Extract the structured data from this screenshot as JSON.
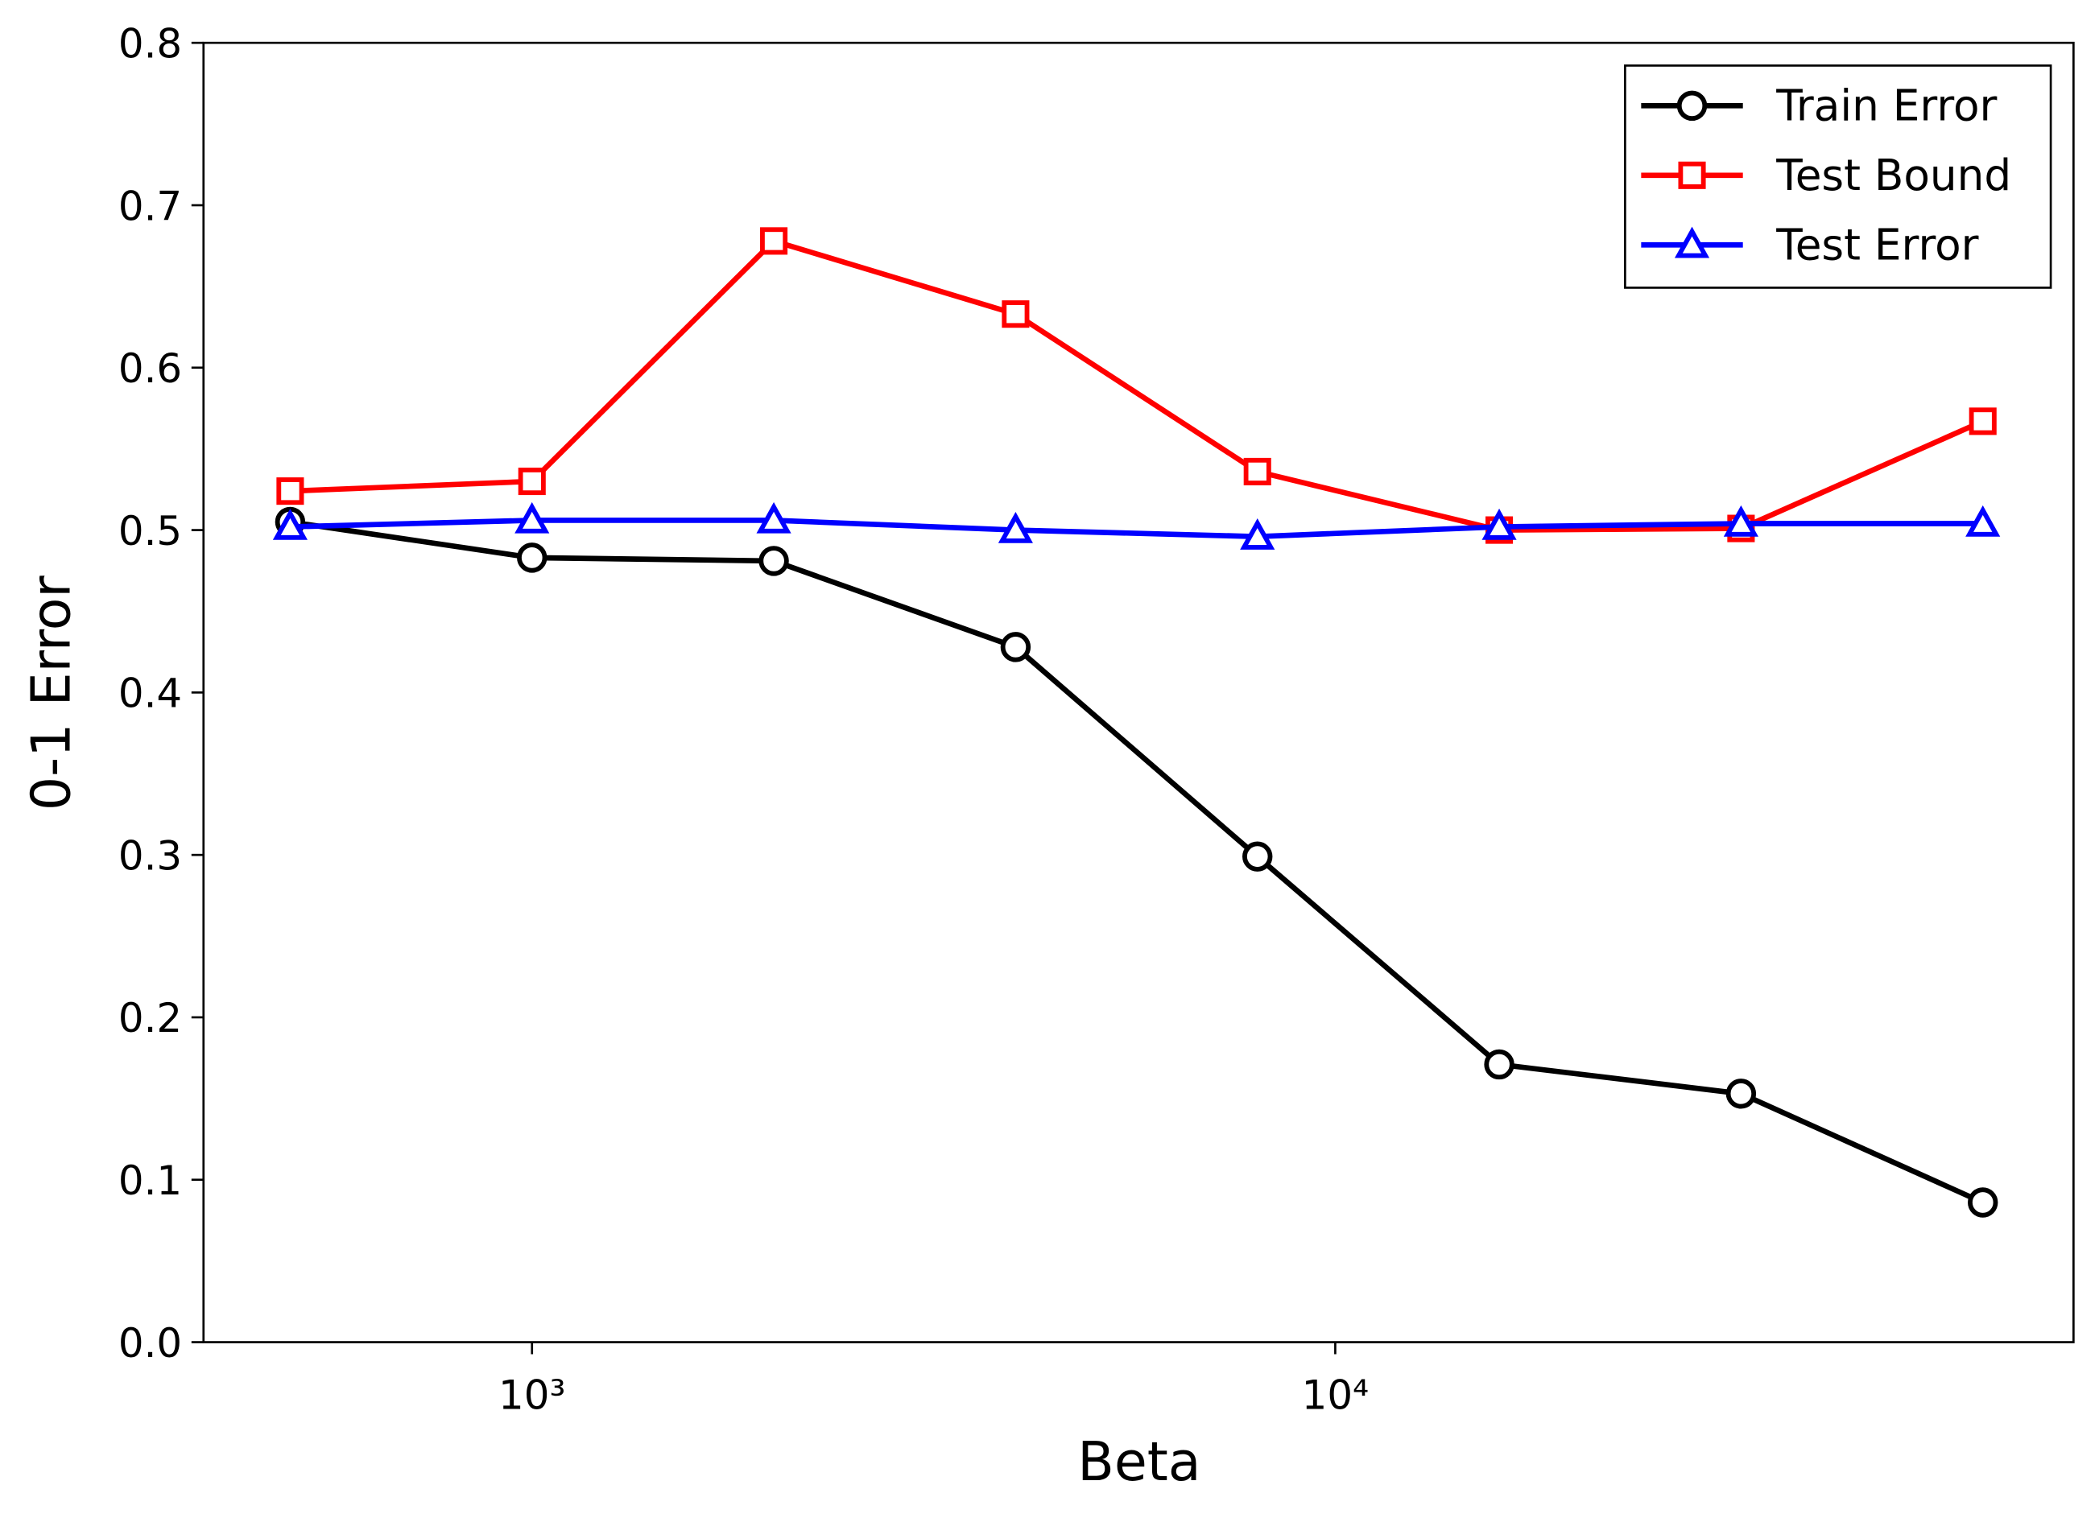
{
  "chart_data": {
    "type": "line",
    "xlabel": "Beta",
    "ylabel": "0-1 Error",
    "x": [
      500,
      1000,
      2000,
      4000,
      8000,
      16000,
      32000,
      64000
    ],
    "xscale": "log",
    "xlim": [
      390,
      83000
    ],
    "xticks": [
      {
        "value": 1000,
        "label": "10³"
      },
      {
        "value": 10000,
        "label": "10⁴"
      }
    ],
    "ylim": [
      0,
      0.8
    ],
    "yticks": [
      {
        "value": 0,
        "label": "0.0"
      },
      0.1,
      0.2,
      0.3,
      0.4,
      0.5,
      0.6,
      0.7,
      0.8
    ],
    "legend": "upper right",
    "series": [
      {
        "name": "Train Error",
        "color": "#000000",
        "marker": "circle",
        "values": [
          0.505,
          0.483,
          0.481,
          0.428,
          0.299,
          0.171,
          0.153,
          0.086
        ]
      },
      {
        "name": "Test Bound",
        "color": "#ff0000",
        "marker": "square",
        "values": [
          0.524,
          0.53,
          0.678,
          0.633,
          0.536,
          0.5,
          0.501,
          0.567
        ]
      },
      {
        "name": "Test Error",
        "color": "#0000ff",
        "marker": "triangle",
        "values": [
          0.502,
          0.506,
          0.506,
          0.5,
          0.496,
          0.502,
          0.504,
          0.504
        ]
      }
    ]
  }
}
